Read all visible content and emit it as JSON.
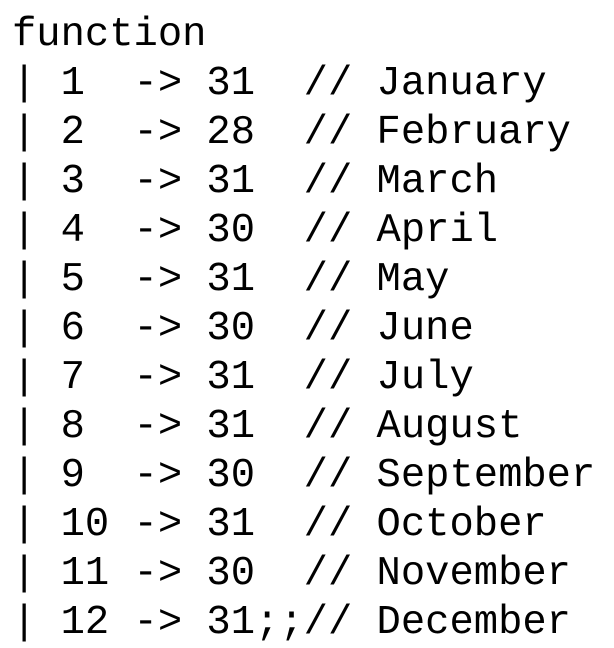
{
  "lines": [
    "function",
    "| 1  -> 31  // January",
    "| 2  -> 28  // February",
    "| 3  -> 31  // March",
    "| 4  -> 30  // April",
    "| 5  -> 31  // May",
    "| 6  -> 30  // June",
    "| 7  -> 31  // July",
    "| 8  -> 31  // August",
    "| 9  -> 30  // September",
    "| 10 -> 31  // October",
    "| 11 -> 30  // November",
    "| 12 -> 31;;// December"
  ]
}
